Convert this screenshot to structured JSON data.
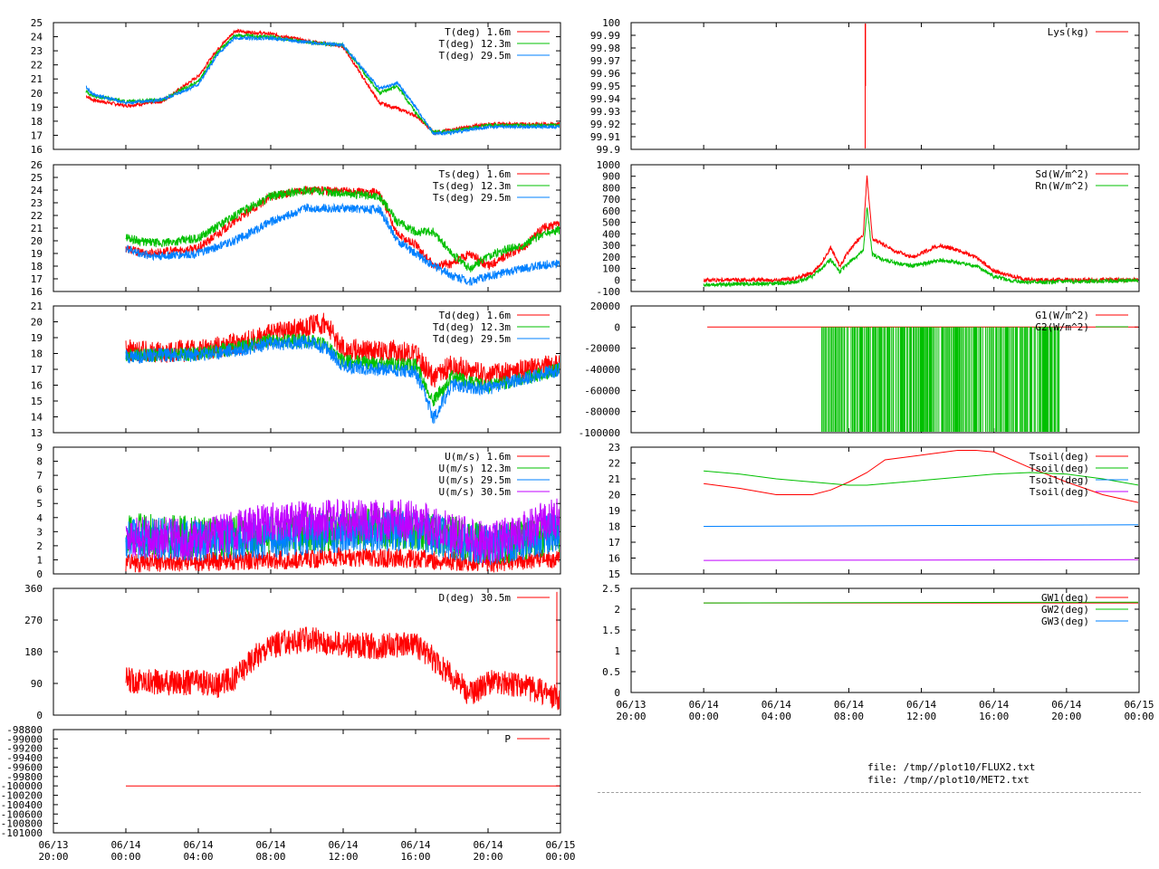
{
  "colors": {
    "red": "#ff0000",
    "green": "#00c000",
    "blue": "#0080ff",
    "purple": "#c000ff",
    "axis": "#000000"
  },
  "time_tick_labels": [
    {
      "date": "06/13",
      "time": "20:00"
    },
    {
      "date": "06/14",
      "time": "00:00"
    },
    {
      "date": "06/14",
      "time": "04:00"
    },
    {
      "date": "06/14",
      "time": "08:00"
    },
    {
      "date": "06/14",
      "time": "12:00"
    },
    {
      "date": "06/14",
      "time": "16:00"
    },
    {
      "date": "06/14",
      "time": "20:00"
    },
    {
      "date": "06/15",
      "time": "00:00"
    }
  ],
  "files": [
    "file: /tmp//plot10/FLUX2.txt",
    "file: /tmp//plot10/MET2.txt"
  ],
  "chart_data": [
    {
      "id": "T",
      "type": "line",
      "x_range": [
        "06/13 20:00",
        "06/15 00:00"
      ],
      "ylim": [
        16,
        25
      ],
      "yticks": [
        "16",
        "17",
        "18",
        "19",
        "20",
        "21",
        "22",
        "23",
        "24",
        "25"
      ],
      "series": [
        {
          "name": "T(deg)  1.6m",
          "color": "#ff0000",
          "x": [
            1.8,
            2.2,
            4,
            6,
            8,
            9,
            10,
            12,
            14,
            16,
            18,
            19,
            20,
            21,
            22,
            24,
            28
          ],
          "values": [
            19.8,
            19.5,
            19.1,
            19.4,
            21.2,
            23.0,
            24.4,
            24.2,
            23.7,
            23.3,
            19.3,
            18.9,
            18.4,
            17.2,
            17.4,
            17.8,
            17.8
          ]
        },
        {
          "name": "T(deg) 12.3m",
          "color": "#00c000",
          "x": [
            1.8,
            2.2,
            4,
            6,
            8,
            9,
            10,
            12,
            14,
            16,
            18,
            19,
            20,
            21,
            22,
            24,
            28
          ],
          "values": [
            20.1,
            19.8,
            19.4,
            19.5,
            20.8,
            22.8,
            24.1,
            24.0,
            23.6,
            23.4,
            20.0,
            20.5,
            18.6,
            17.2,
            17.3,
            17.7,
            17.7
          ]
        },
        {
          "name": "T(deg) 29.5m",
          "color": "#0080ff",
          "x": [
            1.8,
            2.2,
            4,
            6,
            8,
            9,
            10,
            12,
            14,
            16,
            18,
            19,
            20,
            21,
            22,
            24,
            28
          ],
          "values": [
            20.4,
            19.9,
            19.3,
            19.5,
            20.6,
            22.6,
            23.9,
            23.9,
            23.6,
            23.4,
            20.3,
            20.7,
            19.0,
            17.1,
            17.2,
            17.6,
            17.6
          ]
        }
      ]
    },
    {
      "id": "Ts",
      "type": "line",
      "x_range": [
        "06/13 20:00",
        "06/15 00:00"
      ],
      "ylim": [
        16,
        26
      ],
      "yticks": [
        "16",
        "17",
        "18",
        "19",
        "20",
        "21",
        "22",
        "23",
        "24",
        "25",
        "26"
      ],
      "series": [
        {
          "name": "Ts(deg)  1.6m",
          "color": "#ff0000",
          "x": [
            4,
            5,
            6,
            8,
            10,
            12,
            14,
            18,
            19,
            20,
            21,
            22,
            23,
            24,
            25,
            26,
            27,
            28
          ],
          "values": [
            19.4,
            19.0,
            19.1,
            19.4,
            21.5,
            23.5,
            24.0,
            23.8,
            20.5,
            19.7,
            18.0,
            18.2,
            19.0,
            18.0,
            18.8,
            19.5,
            21.0,
            21.3
          ]
        },
        {
          "name": "Ts(deg) 12.3m",
          "color": "#00c000",
          "x": [
            4,
            5,
            6,
            8,
            10,
            12,
            14,
            18,
            19,
            20,
            21,
            22,
            23,
            24,
            25,
            26,
            27,
            28
          ],
          "values": [
            20.3,
            19.9,
            19.8,
            20.2,
            22.0,
            23.5,
            24.0,
            23.5,
            21.5,
            20.7,
            20.7,
            19.0,
            17.8,
            18.8,
            19.3,
            19.7,
            20.5,
            20.9
          ]
        },
        {
          "name": "Ts(deg) 29.5m",
          "color": "#0080ff",
          "x": [
            4,
            5,
            6,
            8,
            10,
            12,
            14,
            18,
            19,
            20,
            21,
            22,
            23,
            24,
            25,
            26,
            27,
            28
          ],
          "values": [
            19.4,
            18.9,
            18.8,
            19.0,
            20.0,
            21.5,
            22.6,
            22.5,
            20.0,
            19.0,
            18.0,
            17.3,
            16.8,
            17.2,
            17.5,
            17.8,
            18.1,
            18.2
          ]
        }
      ]
    },
    {
      "id": "Td",
      "type": "line",
      "x_range": [
        "06/13 20:00",
        "06/15 00:00"
      ],
      "ylim": [
        13,
        21
      ],
      "yticks": [
        "13",
        "14",
        "15",
        "16",
        "17",
        "18",
        "19",
        "20",
        "21"
      ],
      "series": [
        {
          "name": "Td(deg)  1.6m",
          "color": "#ff0000",
          "x": [
            4,
            6,
            8,
            10,
            12,
            14,
            15,
            16,
            18,
            19,
            20,
            21,
            22,
            24,
            28
          ],
          "values": [
            18.2,
            18.1,
            18.2,
            18.6,
            19.2,
            19.7,
            19.9,
            18.3,
            18.1,
            18.2,
            18.0,
            16.4,
            17.3,
            16.6,
            17.3
          ]
        },
        {
          "name": "Td(deg) 12.3m",
          "color": "#00c000",
          "x": [
            4,
            6,
            8,
            10,
            12,
            14,
            15,
            16,
            18,
            19,
            20,
            21,
            22,
            24,
            28
          ],
          "values": [
            17.9,
            17.9,
            18.0,
            18.3,
            18.8,
            18.8,
            18.6,
            17.5,
            17.4,
            17.3,
            17.3,
            15.0,
            16.5,
            15.9,
            17.0
          ]
        },
        {
          "name": "Td(deg) 29.5m",
          "color": "#0080ff",
          "x": [
            4,
            6,
            8,
            10,
            12,
            14,
            15,
            16,
            18,
            19,
            20,
            21,
            22,
            24,
            28
          ],
          "values": [
            17.8,
            17.9,
            17.9,
            18.2,
            18.6,
            18.7,
            18.4,
            17.2,
            17.0,
            17.0,
            16.8,
            13.9,
            16.0,
            15.8,
            17.0
          ]
        }
      ]
    },
    {
      "id": "U",
      "type": "line",
      "x_range": [
        "06/13 20:00",
        "06/15 00:00"
      ],
      "ylim": [
        0,
        9
      ],
      "yticks": [
        "0",
        "1",
        "2",
        "3",
        "4",
        "5",
        "6",
        "7",
        "8",
        "9"
      ],
      "series": [
        {
          "name": "U(m/s)  1.6m",
          "color": "#ff0000",
          "x": [
            4,
            8,
            12,
            16,
            20,
            24,
            28
          ],
          "values": [
            0.5,
            0.6,
            0.7,
            0.9,
            0.8,
            0.5,
            0.8
          ]
        },
        {
          "name": "U(m/s) 12.3m",
          "color": "#00c000",
          "x": [
            4,
            8,
            12,
            16,
            20,
            24,
            28
          ],
          "values": [
            2.3,
            2.0,
            2.2,
            2.6,
            2.6,
            1.4,
            2.3
          ]
        },
        {
          "name": "U(m/s) 29.5m",
          "color": "#0080ff",
          "x": [
            4,
            8,
            12,
            16,
            20,
            24,
            28
          ],
          "values": [
            2.0,
            1.8,
            2.0,
            2.4,
            2.5,
            1.3,
            2.4
          ]
        },
        {
          "name": "U(m/s) 30.5m",
          "color": "#c000ff",
          "x": [
            4,
            8,
            12,
            16,
            20,
            24,
            28
          ],
          "values": [
            2.1,
            1.8,
            3.0,
            3.2,
            3.2,
            1.5,
            3.5
          ]
        }
      ]
    },
    {
      "id": "D",
      "type": "line",
      "x_range": [
        "06/13 20:00",
        "06/15 00:00"
      ],
      "ylim": [
        0,
        360
      ],
      "yticks": [
        "0",
        "90",
        "180",
        "270",
        "360"
      ],
      "series": [
        {
          "name": "D(deg)  30.5m",
          "color": "#ff0000",
          "x": [
            4,
            6,
            8,
            9,
            10,
            11,
            12,
            14,
            16,
            18,
            20,
            21,
            22,
            23,
            24,
            26,
            27,
            28
          ],
          "values": [
            100,
            92,
            95,
            85,
            105,
            160,
            200,
            215,
            200,
            195,
            200,
            160,
            110,
            60,
            95,
            80,
            65,
            45
          ]
        }
      ]
    },
    {
      "id": "P",
      "type": "line",
      "x_range": [
        "06/13 20:00",
        "06/15 00:00"
      ],
      "ylim": [
        -101000,
        -98800
      ],
      "yticks": [
        "-101000",
        "-100800",
        "-100600",
        "-100400",
        "-100200",
        "-100000",
        "-99800",
        "-99600",
        "-99400",
        "-99200",
        "-99000",
        "-98800"
      ],
      "series": [
        {
          "name": "P",
          "color": "#ff0000",
          "x": [
            4.0,
            28
          ],
          "values": [
            -100000,
            -100000
          ]
        }
      ]
    },
    {
      "id": "Lys",
      "type": "line",
      "x_range": [
        "06/13 20:00",
        "06/15 00:00"
      ],
      "ylim": [
        99.9,
        100
      ],
      "yticks": [
        "99.9",
        "99.91",
        "99.92",
        "99.93",
        "99.94",
        "99.95",
        "99.96",
        "99.97",
        "99.98",
        "99.99",
        "100"
      ],
      "series": [
        {
          "name": "Lys(kg)",
          "color": "#ff0000",
          "x": [
            12.9,
            12.9,
            12.92,
            12.92
          ],
          "values": [
            99.9,
            100,
            100,
            99.95
          ]
        }
      ]
    },
    {
      "id": "Rad",
      "type": "line",
      "x_range": [
        "06/13 20:00",
        "06/15 00:00"
      ],
      "ylim": [
        -100,
        1000
      ],
      "yticks": [
        "-100",
        "0",
        "100",
        "200",
        "300",
        "400",
        "500",
        "600",
        "700",
        "800",
        "900",
        "1000"
      ],
      "series": [
        {
          "name": "Sd(W/m^2)",
          "color": "#ff0000",
          "x": [
            4,
            6,
            8,
            9,
            10,
            10.5,
            11,
            11.5,
            12,
            12.8,
            13,
            13.3,
            13.8,
            14.5,
            15.5,
            17,
            18,
            19,
            20,
            21,
            22,
            23,
            24,
            25,
            28
          ],
          "values": [
            0,
            0,
            0,
            10,
            60,
            150,
            280,
            120,
            250,
            400,
            900,
            350,
            320,
            250,
            200,
            300,
            260,
            200,
            80,
            30,
            0,
            0,
            0,
            0,
            0
          ]
        },
        {
          "name": "Rn(W/m^2)",
          "color": "#00c000",
          "x": [
            4,
            6,
            8,
            9,
            10,
            10.5,
            11,
            11.5,
            12,
            12.8,
            13,
            13.3,
            13.8,
            14.5,
            15.5,
            17,
            18,
            19,
            20,
            21,
            22,
            23,
            24,
            25,
            28
          ],
          "values": [
            -40,
            -35,
            -30,
            -20,
            30,
            100,
            180,
            70,
            150,
            250,
            630,
            220,
            180,
            150,
            120,
            170,
            150,
            120,
            30,
            -10,
            -20,
            -20,
            -15,
            -10,
            -5
          ]
        }
      ]
    },
    {
      "id": "G",
      "type": "line",
      "x_range": [
        "06/13 20:00",
        "06/15 00:00"
      ],
      "ylim": [
        -100000,
        20000
      ],
      "yticks": [
        "-100000",
        "-80000",
        "-60000",
        "-40000",
        "-20000",
        "0",
        "20000"
      ],
      "series": [
        {
          "name": "G1(W/m^2)",
          "color": "#ff0000",
          "x": [
            4.2,
            28
          ],
          "values": [
            0,
            0
          ]
        },
        {
          "name": "G2(W/m^2)",
          "color": "#00c000",
          "x": [
            10.5,
            23.6
          ],
          "values": [
            -100000,
            0
          ]
        }
      ]
    },
    {
      "id": "Tsoil",
      "type": "line",
      "x_range": [
        "06/13 20:00",
        "06/15 00:00"
      ],
      "ylim": [
        15,
        23
      ],
      "yticks": [
        "15",
        "16",
        "17",
        "18",
        "19",
        "20",
        "21",
        "22",
        "23"
      ],
      "series": [
        {
          "name": "Tsoil(deg)",
          "color": "#ff0000",
          "x": [
            4,
            6,
            8,
            10,
            11,
            12,
            13,
            14,
            16,
            18,
            19,
            20,
            22,
            24,
            26,
            28
          ],
          "values": [
            20.7,
            20.4,
            20.0,
            20.0,
            20.3,
            20.8,
            21.4,
            22.2,
            22.5,
            22.8,
            22.8,
            22.7,
            21.7,
            20.8,
            20.0,
            19.5
          ]
        },
        {
          "name": "Tsoil(deg)",
          "color": "#00c000",
          "x": [
            4,
            6,
            8,
            10,
            11,
            12,
            13,
            14,
            16,
            18,
            19,
            20,
            22,
            24,
            26,
            28
          ],
          "values": [
            21.5,
            21.3,
            21.0,
            20.8,
            20.7,
            20.6,
            20.6,
            20.7,
            20.9,
            21.1,
            21.2,
            21.3,
            21.4,
            21.3,
            21.0,
            20.6
          ]
        },
        {
          "name": "Tsoil(deg)",
          "color": "#0080ff",
          "x": [
            4,
            28
          ],
          "values": [
            18.0,
            18.1
          ]
        },
        {
          "name": "Tsoil(deg)",
          "color": "#c000ff",
          "x": [
            4,
            28
          ],
          "values": [
            15.85,
            15.9
          ]
        }
      ]
    },
    {
      "id": "GW",
      "type": "line",
      "x_range": [
        "06/13 20:00",
        "06/15 00:00"
      ],
      "ylim": [
        0,
        2.5
      ],
      "yticks": [
        "0",
        "0.5",
        "1",
        "1.5",
        "2",
        "2.5"
      ],
      "series": [
        {
          "name": "GW1(deg)",
          "color": "#ff0000",
          "x": [
            4,
            28
          ],
          "values": [
            2.15,
            2.15
          ]
        },
        {
          "name": "GW2(deg)",
          "color": "#00c000",
          "x": [
            4,
            28
          ],
          "values": [
            2.15,
            2.17
          ]
        },
        {
          "name": "GW3(deg)",
          "color": "#0080ff",
          "x": [],
          "values": []
        }
      ]
    }
  ]
}
